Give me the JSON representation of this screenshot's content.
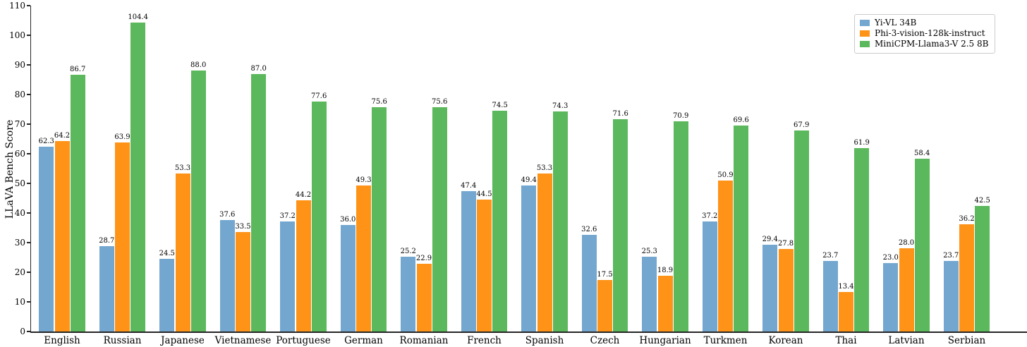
{
  "chart_data": {
    "type": "bar",
    "title": "",
    "xlabel": "",
    "ylabel": "LLaVA Bench Score",
    "ylim": [
      0,
      110
    ],
    "yticks": [
      0,
      10,
      20,
      30,
      40,
      50,
      60,
      70,
      80,
      90,
      100,
      110
    ],
    "grid": false,
    "legend_position": "upper right",
    "value_label_decimals": 1,
    "categories": [
      "English",
      "Russian",
      "Japanese",
      "Vietnamese",
      "Portuguese",
      "German",
      "Romanian",
      "French",
      "Spanish",
      "Czech",
      "Hungarian",
      "Turkmen",
      "Korean",
      "Thai",
      "Latvian",
      "Serbian"
    ],
    "series": [
      {
        "name": "Yi-VL 34B",
        "color": "#74a7cf",
        "values": [
          62.3,
          28.7,
          24.5,
          37.6,
          37.2,
          36.0,
          25.2,
          47.4,
          49.4,
          32.6,
          25.3,
          37.2,
          29.4,
          23.7,
          23.0,
          23.7
        ]
      },
      {
        "name": "Phi-3-vision-128k-instruct",
        "color": "#ff9318",
        "values": [
          64.2,
          63.9,
          53.3,
          33.5,
          44.2,
          49.3,
          22.9,
          44.5,
          53.3,
          17.5,
          18.9,
          50.9,
          27.8,
          13.4,
          28.0,
          36.2
        ]
      },
      {
        "name": "MiniCPM-Llama3-V 2.5 8B",
        "color": "#5cb85c",
        "values": [
          86.7,
          104.4,
          88.0,
          87.0,
          77.6,
          75.6,
          75.6,
          74.5,
          74.3,
          71.6,
          70.9,
          69.6,
          67.9,
          61.9,
          58.4,
          42.5
        ]
      }
    ],
    "axis_color": "#262626",
    "text_color": "#000000"
  }
}
